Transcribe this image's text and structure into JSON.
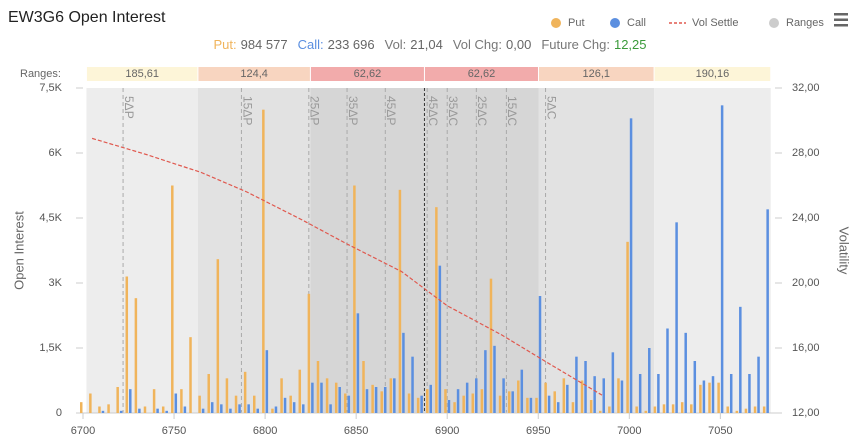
{
  "summary": [
    {
      "label": "Put:",
      "value": "984 577",
      "color": "#f0b45b"
    },
    {
      "label": "Call:",
      "value": "233 696",
      "color": "#5b8fe0"
    },
    {
      "label": "Vol:",
      "value": "21,04"
    },
    {
      "label": "Vol Chg:",
      "value": "0,00"
    },
    {
      "label": "Future Chg:",
      "value": "12,25",
      "value_color": "#3a9a3a"
    }
  ],
  "chart_data": {
    "type": "bar",
    "title": "EW3G6 Open Interest",
    "legend_corner": "top-right",
    "grid": false,
    "ylabel": "Open Interest",
    "y2label": "Volatility",
    "x": [
      6700,
      6705,
      6710,
      6715,
      6720,
      6725,
      6730,
      6735,
      6740,
      6745,
      6750,
      6755,
      6760,
      6765,
      6770,
      6775,
      6780,
      6785,
      6790,
      6795,
      6800,
      6805,
      6810,
      6815,
      6820,
      6825,
      6830,
      6835,
      6840,
      6845,
      6850,
      6855,
      6860,
      6865,
      6870,
      6875,
      6880,
      6885,
      6890,
      6895,
      6900,
      6905,
      6910,
      6915,
      6920,
      6925,
      6930,
      6935,
      6940,
      6945,
      6950,
      6955,
      6960,
      6965,
      6970,
      6975,
      6980,
      6985,
      6990,
      6995,
      7000,
      7005,
      7010,
      7015,
      7020,
      7025,
      7030,
      7035,
      7040,
      7045,
      7050,
      7055,
      7060,
      7065,
      7070,
      7075
    ],
    "series": [
      {
        "name": "Put",
        "color": "#f0b45b",
        "values": [
          250,
          450,
          150,
          200,
          600,
          3150,
          2650,
          150,
          550,
          150,
          5250,
          550,
          1750,
          400,
          900,
          3550,
          800,
          400,
          950,
          400,
          7000,
          100,
          800,
          400,
          1000,
          2750,
          1200,
          800,
          700,
          450,
          5250,
          1200,
          650,
          500,
          800,
          5150,
          450,
          350,
          550,
          4750,
          550,
          250,
          400,
          450,
          550,
          3100,
          400,
          500,
          750,
          350,
          350,
          700,
          500,
          800,
          250,
          750,
          300,
          50,
          150,
          800,
          3950,
          150,
          50,
          150,
          200,
          200,
          250,
          200,
          650,
          700,
          700,
          150,
          50,
          100,
          150,
          150
        ]
      },
      {
        "name": "Call",
        "color": "#5b8fe0",
        "values": [
          0,
          0,
          50,
          0,
          50,
          550,
          100,
          0,
          100,
          50,
          450,
          150,
          0,
          100,
          250,
          200,
          100,
          200,
          200,
          100,
          1450,
          150,
          350,
          250,
          200,
          700,
          700,
          200,
          600,
          400,
          2300,
          550,
          600,
          600,
          800,
          1850,
          1300,
          400,
          650,
          3400,
          300,
          550,
          700,
          800,
          1450,
          1550,
          800,
          500,
          1000,
          350,
          2700,
          400,
          250,
          650,
          1300,
          1200,
          850,
          800,
          1400,
          750,
          6800,
          900,
          1500,
          900,
          1950,
          4400,
          1850,
          1200,
          750,
          850,
          7100,
          900,
          2450,
          900,
          1300,
          4700
        ]
      }
    ],
    "vol_settle": {
      "name": "Vol Settle",
      "color": "#e0584e",
      "axis": "y2",
      "x": [
        6705,
        6735,
        6765,
        6790,
        6820,
        6845,
        6875,
        6900,
        6930,
        6955,
        6985
      ],
      "values": [
        28.9,
        27.9,
        26.8,
        25.6,
        23.9,
        22.4,
        20.7,
        18.6,
        16.8,
        15.1,
        13.1
      ]
    },
    "xlim": [
      6700,
      7080
    ],
    "xticks": [
      6700,
      6750,
      6800,
      6850,
      6900,
      6950,
      7000,
      7050
    ],
    "ylim": [
      0,
      7500
    ],
    "yticks": [
      0,
      {
        "value": 1500,
        "label": "1,5K"
      },
      {
        "value": 3000,
        "label": "3K"
      },
      {
        "value": 4500,
        "label": "4,5K"
      },
      {
        "value": 6000,
        "label": "6K"
      },
      {
        "value": 7500,
        "label": "7,5K"
      }
    ],
    "y2lim": [
      12,
      32
    ],
    "y2ticks": [
      {
        "value": 12,
        "label": "12,00"
      },
      {
        "value": 16,
        "label": "16,00"
      },
      {
        "value": 20,
        "label": "20,00"
      },
      {
        "value": 24,
        "label": "24,00"
      },
      {
        "value": 28,
        "label": "28,00"
      },
      {
        "value": 32,
        "label": "32,00"
      }
    ],
    "future_line": 6887.5,
    "ranges": {
      "label": "Ranges:",
      "legend": "Ranges",
      "color": "#cccccc",
      "values": [
        185.61,
        124.4,
        62.62,
        62.62,
        126.1,
        190.16
      ],
      "value_labels": [
        "185,61",
        "124,4",
        "62,62",
        "62,62",
        "126,1",
        "190,16"
      ],
      "cell_colors": [
        "#fdf5d8",
        "#f8d5c0",
        "#f2abab",
        "#f2abab",
        "#f8d5c0",
        "#fdf5d8"
      ],
      "band_colors": [
        "#ededed",
        "#e2e2e2",
        "#d6d6d6",
        "#d6d6d6",
        "#e2e2e2",
        "#ededed"
      ]
    },
    "delta_lines": [
      {
        "label": "5ΔP",
        "x": 6722
      },
      {
        "label": "15ΔP",
        "x": 6787
      },
      {
        "label": "25ΔP",
        "x": 6824
      },
      {
        "label": "35ΔP",
        "x": 6845
      },
      {
        "label": "45ΔP",
        "x": 6866
      },
      {
        "label": "45ΔC",
        "x": 6889
      },
      {
        "label": "35ΔC",
        "x": 6900
      },
      {
        "label": "25ΔC",
        "x": 6916
      },
      {
        "label": "15ΔC",
        "x": 6932.5
      },
      {
        "label": "5ΔC",
        "x": 6954
      }
    ]
  }
}
